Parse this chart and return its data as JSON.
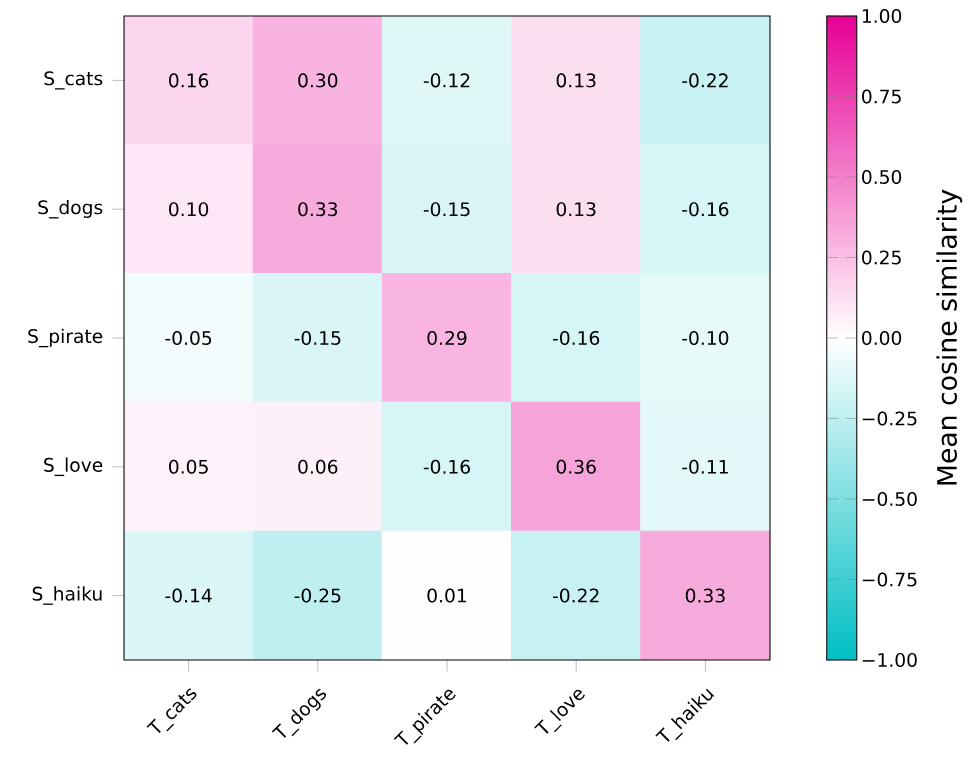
{
  "chart_data": {
    "type": "heatmap",
    "categories": [
      "T_cats",
      "T_dogs",
      "T_pirate",
      "T_love",
      "T_haiku"
    ],
    "y_categories": [
      "S_cats",
      "S_dogs",
      "S_pirate",
      "S_love",
      "S_haiku"
    ],
    "cells": [
      [
        0.16,
        0.3,
        -0.12,
        0.13,
        -0.22
      ],
      [
        0.1,
        0.33,
        -0.15,
        0.13,
        -0.16
      ],
      [
        -0.05,
        -0.15,
        0.29,
        -0.16,
        -0.1
      ],
      [
        0.05,
        0.06,
        -0.16,
        0.36,
        -0.11
      ],
      [
        -0.14,
        -0.25,
        0.01,
        -0.22,
        0.33
      ]
    ],
    "cell_labels": [
      [
        "0.16",
        "0.30",
        "-0.12",
        "0.13",
        "-0.22"
      ],
      [
        "0.10",
        "0.33",
        "-0.15",
        "0.13",
        "-0.16"
      ],
      [
        "-0.05",
        "-0.15",
        "0.29",
        "-0.16",
        "-0.10"
      ],
      [
        "0.05",
        "0.06",
        "-0.16",
        "0.36",
        "-0.11"
      ],
      [
        "-0.14",
        "-0.25",
        "0.01",
        "-0.22",
        "0.33"
      ]
    ],
    "clim": [
      -1,
      1
    ],
    "cticks": [
      {
        "value": -1,
        "label": "−1.00"
      },
      {
        "value": -0.75,
        "label": "−0.75"
      },
      {
        "value": -0.5,
        "label": "−0.50"
      },
      {
        "value": -0.25,
        "label": "−0.25"
      },
      {
        "value": 0,
        "label": "0.00"
      },
      {
        "value": 0.25,
        "label": "0.25"
      },
      {
        "value": 0.5,
        "label": "0.50"
      },
      {
        "value": 0.75,
        "label": "0.75"
      },
      {
        "value": 1,
        "label": "1.00"
      }
    ],
    "clabel": "Mean cosine similarity"
  }
}
